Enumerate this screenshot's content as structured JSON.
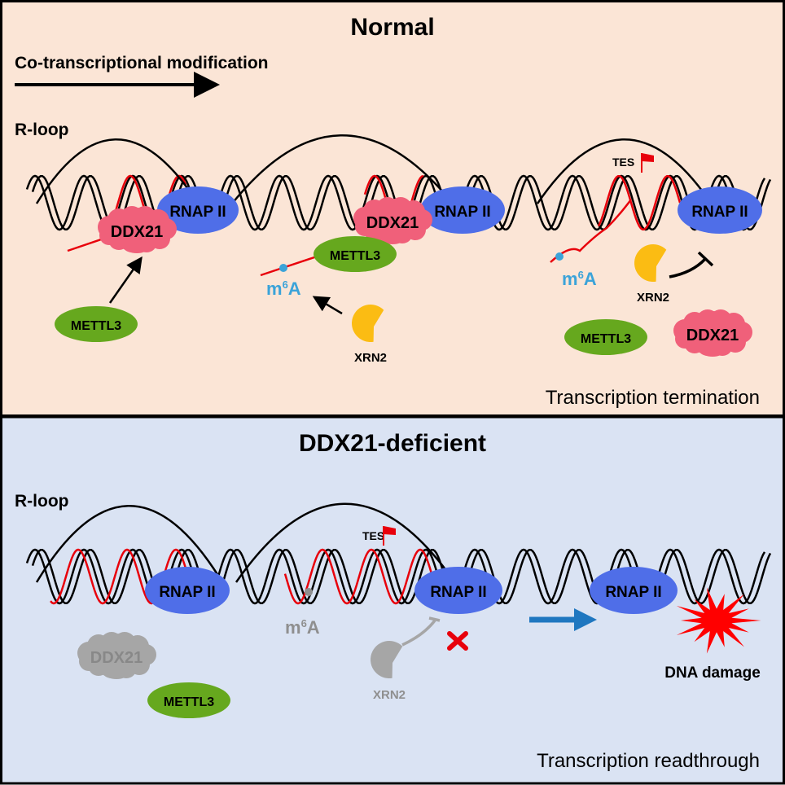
{
  "colors": {
    "normal_bg": "#fbe5d6",
    "deficient_bg": "#dae3f3",
    "rnap": "#4f6ee8",
    "ddx21": "#f0607a",
    "mettl3": "#66a81e",
    "xrn2": "#fbbc13",
    "m6a": "#3ba3d9",
    "rna": "#e8000b",
    "inactive": "#a6a6a6",
    "flow_arrow": "#1f77c0",
    "damage": "#ff0000"
  },
  "normal": {
    "title": "Normal",
    "cotranscriptional_label": "Co-transcriptional modification",
    "rloop_label": "R-loop",
    "rnap_label": "RNAP II",
    "ddx21_label": "DDX21",
    "mettl3_label": "METTL3",
    "xrn2_label": "XRN2",
    "tes_label": "TES",
    "m6a": {
      "base": "m",
      "sup": "6",
      "tail": "A"
    },
    "outcome": "Transcription termination"
  },
  "deficient": {
    "title": "DDX21-deficient",
    "rloop_label": "R-loop",
    "rnap_label": "RNAP II",
    "ddx21_label": "DDX21",
    "mettl3_label": "METTL3",
    "xrn2_label": "XRN2",
    "tes_label": "TES",
    "m6a": {
      "base": "m",
      "sup": "6",
      "tail": "A"
    },
    "damage_label": "DNA damage",
    "outcome": "Transcription readthrough"
  }
}
